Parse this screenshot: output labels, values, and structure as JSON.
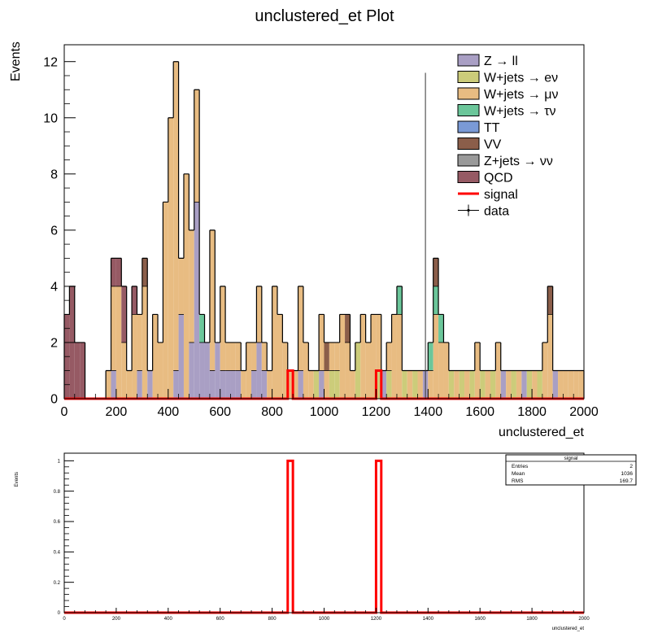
{
  "chart_data": [
    {
      "type": "stacked-step-histogram",
      "title": "unclustered_et Plot",
      "xlabel": "unclustered_et",
      "ylabel": "Events",
      "xlim": [
        0,
        2000
      ],
      "ylim": [
        0,
        12.6
      ],
      "x_ticks": [
        0,
        200,
        400,
        600,
        800,
        1000,
        1200,
        1400,
        1600,
        1800,
        2000
      ],
      "y_ticks": [
        0,
        2,
        4,
        6,
        8,
        10,
        12
      ],
      "bin_width": 20,
      "legend_position": "top-right",
      "colors": {
        "zll": "#a99fc4",
        "wenu": "#cccc7a",
        "wmunu": "#e8bc82",
        "wtaunu": "#6bc69a",
        "tt": "#7a9ad6",
        "vv": "#8b5e4a",
        "znunu": "#999999",
        "qcd": "#965a64",
        "signal": "#ff0000",
        "data": "#000000"
      },
      "legend": [
        {
          "key": "zll",
          "label": "Z → ll",
          "style": "box"
        },
        {
          "key": "wenu",
          "label": "W+jets → eν",
          "style": "box"
        },
        {
          "key": "wmunu",
          "label": "W+jets → μν",
          "style": "box"
        },
        {
          "key": "wtaunu",
          "label": "W+jets → τν",
          "style": "box"
        },
        {
          "key": "tt",
          "label": "TT",
          "style": "box"
        },
        {
          "key": "vv",
          "label": "VV",
          "style": "box"
        },
        {
          "key": "znunu",
          "label": "Z+jets → νν",
          "style": "box"
        },
        {
          "key": "qcd",
          "label": "QCD",
          "style": "box"
        },
        {
          "key": "signal",
          "label": "signal",
          "style": "line"
        },
        {
          "key": "data",
          "label": "data",
          "style": "marker"
        }
      ],
      "stack_order": [
        "zll",
        "wenu",
        "wmunu",
        "wtaunu",
        "vv",
        "qcd"
      ],
      "bins": [
        {
          "x": 0,
          "qcd": 3
        },
        {
          "x": 20,
          "qcd": 4
        },
        {
          "x": 40,
          "qcd": 2
        },
        {
          "x": 60,
          "qcd": 2
        },
        {
          "x": 160,
          "wmunu": 1
        },
        {
          "x": 180,
          "zll": 1,
          "wmunu": 3,
          "qcd": 1
        },
        {
          "x": 200,
          "wmunu": 4,
          "qcd": 1
        },
        {
          "x": 220,
          "wmunu": 2,
          "qcd": 2
        },
        {
          "x": 240,
          "wmunu": 1
        },
        {
          "x": 260,
          "wmunu": 3,
          "qcd": 1
        },
        {
          "x": 280,
          "zll": 1,
          "wmunu": 2
        },
        {
          "x": 300,
          "wmunu": 4,
          "vv": 1
        },
        {
          "x": 320,
          "zll": 1
        },
        {
          "x": 340,
          "wmunu": 3
        },
        {
          "x": 360,
          "wmunu": 2
        },
        {
          "x": 380,
          "wmunu": 7
        },
        {
          "x": 400,
          "wmunu": 10
        },
        {
          "x": 420,
          "zll": 1,
          "wmunu": 11
        },
        {
          "x": 440,
          "zll": 3,
          "wmunu": 2
        },
        {
          "x": 460,
          "wmunu": 8
        },
        {
          "x": 480,
          "zll": 2,
          "wmunu": 4
        },
        {
          "x": 500,
          "zll": 7,
          "wmunu": 4
        },
        {
          "x": 520,
          "zll": 2,
          "wtaunu": 1
        },
        {
          "x": 540,
          "zll": 2
        },
        {
          "x": 560,
          "zll": 1,
          "wmunu": 5
        },
        {
          "x": 580,
          "zll": 2
        },
        {
          "x": 600,
          "zll": 1,
          "wmunu": 3
        },
        {
          "x": 620,
          "zll": 1,
          "wmunu": 1
        },
        {
          "x": 640,
          "zll": 1,
          "wmunu": 1
        },
        {
          "x": 660,
          "zll": 1,
          "wmunu": 1
        },
        {
          "x": 680,
          "wmunu": 1
        },
        {
          "x": 700,
          "wmunu": 2
        },
        {
          "x": 720,
          "zll": 1,
          "wmunu": 1
        },
        {
          "x": 740,
          "zll": 2,
          "wmunu": 2
        },
        {
          "x": 760,
          "zll": 1,
          "wmunu": 1
        },
        {
          "x": 780,
          "wmunu": 1
        },
        {
          "x": 800,
          "wmunu": 4
        },
        {
          "x": 820,
          "wmunu": 3
        },
        {
          "x": 840,
          "wmunu": 2
        },
        {
          "x": 860,
          "wmunu": 1
        },
        {
          "x": 880,
          "wmunu": 1
        },
        {
          "x": 900,
          "zll": 1,
          "wmunu": 3
        },
        {
          "x": 920,
          "wmunu": 2
        },
        {
          "x": 940,
          "wmunu": 1
        },
        {
          "x": 960,
          "wenu": 1
        },
        {
          "x": 980,
          "zll": 1,
          "wmunu": 2
        },
        {
          "x": 1000,
          "wmunu": 1,
          "vv": 1
        },
        {
          "x": 1020,
          "wenu": 1,
          "wmunu": 1
        },
        {
          "x": 1040,
          "wenu": 1,
          "wmunu": 1
        },
        {
          "x": 1060,
          "wmunu": 3
        },
        {
          "x": 1080,
          "wmunu": 2,
          "vv": 1
        },
        {
          "x": 1100,
          "wmunu": 1
        },
        {
          "x": 1120,
          "wenu": 2
        },
        {
          "x": 1140,
          "wmunu": 3
        },
        {
          "x": 1160,
          "wmunu": 2
        },
        {
          "x": 1180,
          "wmunu": 3
        },
        {
          "x": 1200,
          "wenu": 1,
          "wmunu": 2
        },
        {
          "x": 1220,
          "zll": 1
        },
        {
          "x": 1240,
          "wenu": 1,
          "wmunu": 1
        },
        {
          "x": 1260,
          "wmunu": 3
        },
        {
          "x": 1280,
          "wmunu": 3,
          "wtaunu": 1
        },
        {
          "x": 1300,
          "wenu": 1
        },
        {
          "x": 1320,
          "wmunu": 1
        },
        {
          "x": 1340,
          "wenu": 1
        },
        {
          "x": 1360,
          "wmunu": 1
        },
        {
          "x": 1380,
          "zll": 1
        },
        {
          "x": 1400,
          "wmunu": 1,
          "wtaunu": 1
        },
        {
          "x": 1420,
          "wmunu": 3,
          "wtaunu": 1,
          "vv": 1
        },
        {
          "x": 1440,
          "wmunu": 2,
          "wtaunu": 1
        },
        {
          "x": 1460,
          "wmunu": 2
        },
        {
          "x": 1480,
          "wenu": 1
        },
        {
          "x": 1500,
          "wmunu": 1
        },
        {
          "x": 1520,
          "wenu": 1
        },
        {
          "x": 1540,
          "wmunu": 1
        },
        {
          "x": 1560,
          "wenu": 1
        },
        {
          "x": 1580,
          "wmunu": 2
        },
        {
          "x": 1600,
          "wenu": 1
        },
        {
          "x": 1620,
          "wmunu": 1
        },
        {
          "x": 1640,
          "wenu": 1
        },
        {
          "x": 1660,
          "wmunu": 2
        },
        {
          "x": 1680,
          "zll": 1
        },
        {
          "x": 1700,
          "wmunu": 1
        },
        {
          "x": 1720,
          "wenu": 1
        },
        {
          "x": 1740,
          "wmunu": 1
        },
        {
          "x": 1760,
          "zll": 1
        },
        {
          "x": 1780,
          "wenu": 1
        },
        {
          "x": 1800,
          "wmunu": 1
        },
        {
          "x": 1820,
          "wenu": 1
        },
        {
          "x": 1840,
          "wmunu": 2
        },
        {
          "x": 1860,
          "wmunu": 3,
          "vv": 1
        },
        {
          "x": 1880,
          "zll": 1
        },
        {
          "x": 1900,
          "wmunu": 1
        },
        {
          "x": 1920,
          "wmunu": 1
        },
        {
          "x": 1940,
          "wmunu": 1
        },
        {
          "x": 1960,
          "wmunu": 1
        },
        {
          "x": 1980,
          "wmunu": 1
        }
      ],
      "signal": [
        {
          "x": 860,
          "y": 1
        },
        {
          "x": 1200,
          "y": 1
        }
      ],
      "data_marker_x": 1390,
      "data_marker_ylim": [
        0,
        11.6
      ]
    },
    {
      "type": "step-histogram",
      "title": "",
      "xlabel": "unclustered_et",
      "ylabel": "Events",
      "xlim": [
        0,
        2000
      ],
      "ylim": [
        0,
        1.05
      ],
      "x_ticks": [
        0,
        200,
        400,
        600,
        800,
        1000,
        1200,
        1400,
        1600,
        1800,
        2000
      ],
      "y_ticks": [
        0,
        0.2,
        0.4,
        0.6,
        0.8,
        1
      ],
      "bin_width": 20,
      "series": [
        {
          "name": "signal",
          "color": "#ff0000",
          "points": [
            {
              "x": 860,
              "y": 1
            },
            {
              "x": 1200,
              "y": 1
            }
          ]
        }
      ],
      "stats_box": {
        "title": "signal",
        "rows": [
          {
            "label": "Entries",
            "value": "2"
          },
          {
            "label": "Mean",
            "value": "1036"
          },
          {
            "label": "RMS",
            "value": "169.7"
          }
        ]
      }
    }
  ]
}
